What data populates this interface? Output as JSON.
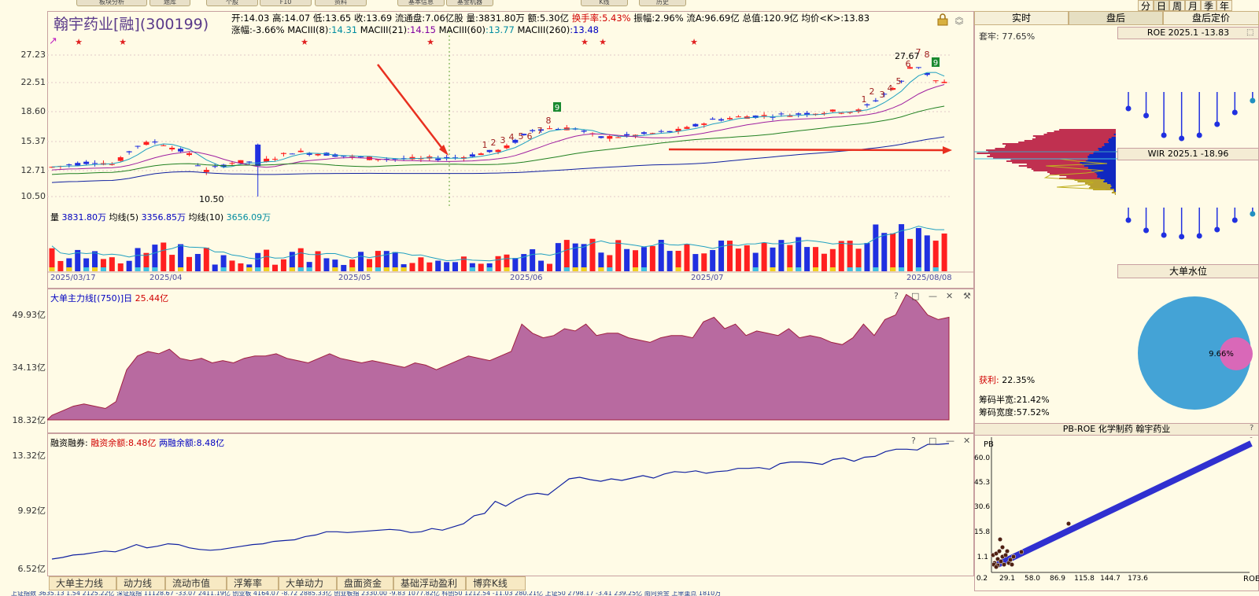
{
  "top_buttons": [
    "板块分析",
    "题库",
    "个股",
    "F10",
    "资料",
    "基本信息",
    "基金机器",
    "K线",
    "历史"
  ],
  "header": {
    "stock_name": "翰宇药业[融](300199)",
    "quote_row1": [
      {
        "k": "开:",
        "v": "14.03"
      },
      {
        "k": "高:",
        "v": "14.07"
      },
      {
        "k": "低:",
        "v": "13.65"
      },
      {
        "k": "收:",
        "v": "13.69"
      },
      {
        "k": "流通盘:",
        "v": "7.06亿股"
      },
      {
        "k": "量:",
        "v": "3831.80万"
      },
      {
        "k": "额:",
        "v": "5.30亿"
      },
      {
        "k": "换手率:",
        "v": "5.43%",
        "red": true
      },
      {
        "k": "振幅:",
        "v": "2.96%"
      },
      {
        "k": "流A:",
        "v": "96.69亿"
      },
      {
        "k": "总值:",
        "v": "120.9亿"
      },
      {
        "k": "均价<K>:",
        "v": "13.83"
      }
    ],
    "quote_row2": [
      {
        "k": "涨幅:",
        "v": "-3.66%"
      },
      {
        "k": "MACIII(8)",
        "v": ":14.31"
      },
      {
        "k": "MACIII(21)",
        "v": ":14.15"
      },
      {
        "k": "MACIII(60)",
        "v": ":13.77"
      },
      {
        "k": "MACIII(260)",
        "v": ":13.48"
      }
    ]
  },
  "timeframes": [
    "分",
    "日",
    "周",
    "月",
    "季",
    "年"
  ],
  "main_chart": {
    "price_ticks": [
      "27.23",
      "22.51",
      "18.60",
      "15.37",
      "12.71",
      "10.50"
    ],
    "low_label": "10.50",
    "high_label": "27.67",
    "td_labels_up": [
      "1",
      "2",
      "3",
      "4",
      "5",
      "6",
      "7",
      "8",
      "9"
    ],
    "td_labels_down": [
      "1",
      "2",
      "3",
      "4",
      "5",
      "6",
      "7",
      "8",
      "9"
    ],
    "volume_header": {
      "k1": "量",
      "v1": "3831.80万",
      "k2": "均线(5)",
      "v2": "3356.85万",
      "k3": "均线(10)",
      "v3": "3656.09万"
    },
    "dates": [
      "2025/03/17",
      "2025/04",
      "2025/05",
      "2025/06",
      "2025/07",
      "2025/08/08"
    ]
  },
  "panel_main_force": {
    "title": "大单主力线[(750)]日",
    "value": "25.44亿",
    "ticks": [
      "49.93亿",
      "34.13亿",
      "18.32亿"
    ]
  },
  "panel_margin": {
    "title": "融资融券:",
    "k1": "融资余额:",
    "v1": "8.48亿",
    "k2": "两融余额:",
    "v2": "8.48亿",
    "ticks": [
      "13.32亿",
      "9.92亿",
      "6.52亿"
    ]
  },
  "panel_controls": [
    "?",
    "□",
    "—",
    "✕"
  ],
  "bottom_tabs": [
    "大单主力线",
    "动力线",
    "流动市值",
    "浮筹率",
    "大单动力",
    "盘面资金",
    "基础浮动盈利",
    "博弈K线"
  ],
  "status_bar": [
    "上证指数",
    "3635.13",
    "1.54",
    "2125.22亿",
    "深证成指",
    "11128.67",
    "-33.07",
    "2411.19亿",
    "创业板",
    "4164.07",
    "-8.72",
    "2885.33亿",
    "创业板指",
    "2330.00",
    "-9.83",
    "1077.82亿",
    "科创50",
    "1212.54",
    "-11.03",
    "280.21亿",
    "上证50",
    "2798.17",
    "-3.41",
    "239.25亿",
    "南向资金",
    "上单重点",
    "1810万"
  ],
  "right_panel": {
    "tabs": [
      "实时",
      "盘后",
      "盘后定价"
    ],
    "trapped": "套牢: 77.65%",
    "profit_label": "获利:",
    "profit": "22.35%",
    "half_width": "筹码半宽:21.42%",
    "width": "筹码宽度:57.52%",
    "roe_title": "ROE 2025.1 -13.83",
    "wir_title": "WIR 2025.1 -18.96",
    "water_title": "大单水位",
    "water_value": "9.66%",
    "pb_title": "PB-ROE 化学制药 翰宇药业",
    "pb_ylabel": "PB",
    "pb_xlabel": "ROE",
    "pb_yticks": [
      "60.0",
      "45.3",
      "30.6",
      "15.8",
      "1.1"
    ],
    "pb_xticks": [
      "0.2",
      "29.1",
      "58.0",
      "86.9",
      "115.8",
      "144.7",
      "173.6"
    ]
  },
  "colors": {
    "up": "#ff2020",
    "down": "#2030e0",
    "area": "#b86aa0",
    "line": "#1020a0",
    "chip_up": "#c03050",
    "chip_down": "#1028c0"
  }
}
